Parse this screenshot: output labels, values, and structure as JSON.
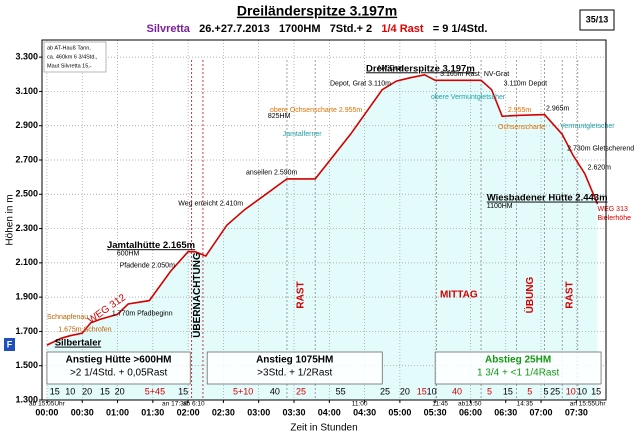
{
  "chart_data": {
    "type": "line",
    "title": "Dreiländerspitze 3.197m",
    "subtitle": [
      {
        "text": "Silvretta",
        "color": "#7a1fa2"
      },
      {
        "text": "26.+27.7.2013",
        "color": "#000000"
      },
      {
        "text": "1700HM",
        "color": "#000000"
      },
      {
        "text": "7Std.+ 2",
        "color": "#000000"
      },
      {
        "text": "1/4 Rast",
        "color": "#e00000"
      },
      {
        "text": "= 9 1/4Std.",
        "color": "#000000"
      }
    ],
    "page_number": "35/13",
    "marker_label": "F",
    "notes": [
      "ab AT-Hauß Tann,",
      "ca. 460km 6 3/4Std.,",
      "Maut Silvretta 15,-"
    ],
    "x_label": "Zeit in Stunden",
    "y_label": "Höhen in m",
    "color": "#d40000",
    "fill": "#e4fbfb",
    "grid": true,
    "xlim": [
      -0.07,
      7.92
    ],
    "ylim": [
      1300,
      3400
    ],
    "xticks": [
      {
        "value": 0,
        "label": "00:00"
      },
      {
        "value": 0.5,
        "label": "00:30"
      },
      {
        "value": 1,
        "label": "01:00"
      },
      {
        "value": 1.5,
        "label": "01:30"
      },
      {
        "value": 2,
        "label": "02:00"
      },
      {
        "value": 2.5,
        "label": "02:30"
      },
      {
        "value": 3,
        "label": "03:00"
      },
      {
        "value": 3.5,
        "label": "03:30"
      },
      {
        "value": 4,
        "label": "04:00"
      },
      {
        "value": 4.5,
        "label": "04:30"
      },
      {
        "value": 5,
        "label": "05:00"
      },
      {
        "value": 5.5,
        "label": "05:30"
      },
      {
        "value": 6,
        "label": "06:00"
      },
      {
        "value": 6.5,
        "label": "06:30"
      },
      {
        "value": 7,
        "label": "07:00"
      },
      {
        "value": 7.5,
        "label": "07:30"
      }
    ],
    "yticks": [
      {
        "value": 1300,
        "label": "1.300"
      },
      {
        "value": 1500,
        "label": "1.500"
      },
      {
        "value": 1700,
        "label": "1.700"
      },
      {
        "value": 1900,
        "label": "1.900"
      },
      {
        "value": 2100,
        "label": "2.100"
      },
      {
        "value": 2300,
        "label": "2.300"
      },
      {
        "value": 2500,
        "label": "2.500"
      },
      {
        "value": 2700,
        "label": "2.700"
      },
      {
        "value": 2900,
        "label": "2.900"
      },
      {
        "value": 3100,
        "label": "3.100"
      },
      {
        "value": 3300,
        "label": "3.300"
      }
    ],
    "x": [
      0,
      0.2,
      0.33,
      0.5,
      0.62,
      0.75,
      1.0,
      1.15,
      1.45,
      1.75,
      2.0,
      2.1,
      2.25,
      2.55,
      2.8,
      3.1,
      3.4,
      3.8,
      4.3,
      4.75,
      4.95,
      5.15,
      5.35,
      5.5,
      6.15,
      6.3,
      6.45,
      6.65,
      7.05,
      7.3,
      7.45,
      7.62,
      7.8
    ],
    "values": [
      1620,
      1660,
      1675,
      1690,
      1750,
      1770,
      1800,
      1860,
      1880,
      2050,
      2165,
      2165,
      2140,
      2320,
      2410,
      2500,
      2590,
      2590,
      2850,
      3110,
      3160,
      3180,
      3197,
      3165,
      3165,
      3110,
      2955,
      2960,
      2965,
      2850,
      2730,
      2620,
      2443
    ],
    "point_labels": [
      {
        "x": 0.11,
        "y": 1597,
        "label": "Silbertaler",
        "color": "#000000",
        "bold": true
      },
      {
        "x": 0.0,
        "y": 1749,
        "label": "Schnapfenau",
        "color": "#c06000",
        "bold": false
      },
      {
        "x": 0.16,
        "y": 1675,
        "label": "1.675m Schrofen",
        "color": "#c06000",
        "bold": false
      },
      {
        "x": 0.92,
        "y": 1770,
        "label": "1.770m Pfadbeginn",
        "color": "#000000",
        "bold": false
      },
      {
        "x": 1.03,
        "y": 2050,
        "label": "Pfadende 2.050m",
        "color": "#000000",
        "bold": false
      },
      {
        "x": 0.85,
        "y": 2165,
        "label": "Jamtalhütte 2.165m",
        "color": "#000000",
        "bold": true
      },
      {
        "x": 0.99,
        "y": 2120,
        "label": "600HM",
        "color": "#000000",
        "bold": false
      },
      {
        "x": 1.86,
        "y": 2410,
        "label": "Weg erreicht 2.410m",
        "color": "#000000",
        "bold": false
      },
      {
        "x": 2.82,
        "y": 2590,
        "label": "anseilen 2.590m",
        "color": "#000000",
        "bold": false
      },
      {
        "x": 3.13,
        "y": 2921,
        "label": "825HM",
        "color": "#000000",
        "bold": false
      },
      {
        "x": 3.34,
        "y": 2816,
        "label": "Jamtalferner",
        "color": "#20a0a8",
        "bold": false
      },
      {
        "x": 3.16,
        "y": 2955,
        "label": "obere Ochsenscharte 2.955m",
        "color": "#e07000",
        "bold": false
      },
      {
        "x": 4.01,
        "y": 3110,
        "label": "Depot, Grat 3.110m",
        "color": "#000000",
        "bold": false
      },
      {
        "x": 4.69,
        "y": 3201,
        "label": "NV-Grat",
        "color": "#000000",
        "bold": false
      },
      {
        "x": 4.52,
        "y": 3197,
        "label": "Dreiländerspitze 3.197m",
        "color": "#000000",
        "bold": true
      },
      {
        "x": 5.57,
        "y": 3165,
        "label": "3.165m Rast",
        "color": "#000000",
        "bold": false
      },
      {
        "x": 6.19,
        "y": 3166,
        "label": "NV-Grat",
        "color": "#000000",
        "bold": false
      },
      {
        "x": 5.44,
        "y": 3032,
        "label": "obere Vermuntgletscher",
        "color": "#20a0a8",
        "bold": false
      },
      {
        "x": 6.47,
        "y": 3110,
        "label": "3.110m Depot",
        "color": "#000000",
        "bold": false
      },
      {
        "x": 6.39,
        "y": 2857,
        "label": "Ochsenscharte",
        "color": "#e07000",
        "bold": false
      },
      {
        "x": 6.53,
        "y": 2955,
        "label": "2.955m",
        "color": "#e07000",
        "bold": false
      },
      {
        "x": 7.07,
        "y": 2965,
        "label": "2.965m",
        "color": "#000000",
        "bold": false
      },
      {
        "x": 7.27,
        "y": 2863,
        "label": "Vermuntgletscher",
        "color": "#20a0a8",
        "bold": false
      },
      {
        "x": 7.37,
        "y": 2730,
        "label": "2.730m Gletscherende",
        "color": "#000000",
        "bold": false
      },
      {
        "x": 7.66,
        "y": 2620,
        "label": "2.620m",
        "color": "#000000",
        "bold": false
      },
      {
        "x": 6.23,
        "y": 2443,
        "label": "Wiesbadener Hütte 2.443m",
        "color": "#000000",
        "bold": true
      },
      {
        "x": 6.23,
        "y": 2396,
        "label": "1100HM",
        "color": "#000000",
        "bold": false
      },
      {
        "x": 7.8,
        "y": 2379,
        "label": "WEG 313",
        "color": "#d40000",
        "bold": false
      },
      {
        "x": 7.8,
        "y": 2327,
        "label": "Bielerhöhe",
        "color": "#d40000",
        "bold": false
      }
    ],
    "path_label": "WEG 312",
    "bands": [
      {
        "label": "ÜBERNACHTUNG",
        "start": 2.05,
        "end": 2.21,
        "color": "#000000",
        "vertical": true
      },
      {
        "label": "RAST",
        "start": 3.4,
        "end": 3.8,
        "color": "#d40000",
        "vertical": true
      },
      {
        "label": "MITTAG",
        "start": 5.52,
        "end": 6.15,
        "color": "#d40000",
        "vertical": false
      },
      {
        "label": "ÜBUNG",
        "start": 6.65,
        "end": 7.05,
        "color": "#d40000",
        "vertical": true
      },
      {
        "label": "RAST",
        "start": 7.3,
        "end": 7.52,
        "color": "#d40000",
        "vertical": true
      }
    ],
    "phases": [
      {
        "label": "Anstieg Hütte >600HM",
        "sublabel": ">2 1/4Std. + 0,05Rast",
        "start": 0,
        "end": 2.03,
        "color": "#000000"
      },
      {
        "label": "Anstieg 1075HM",
        "sublabel": ">3Std. + 1/2Rast",
        "start": 2.27,
        "end": 4.75,
        "color": "#000000"
      },
      {
        "label": "Abstieg 25HM",
        "sublabel": "1 3/4 + <1 1/4Rast",
        "start": 5.5,
        "end": 7.85,
        "color": "#119911"
      }
    ],
    "clock_labels": [
      {
        "x": 0,
        "label": "ab 15:05Uhr"
      },
      {
        "x": 1.81,
        "label": "an 17:30"
      },
      {
        "x": 2.08,
        "label": "ab 6:10"
      },
      {
        "x": 4.43,
        "label": "11:00"
      },
      {
        "x": 5.57,
        "label": "11:45"
      },
      {
        "x": 5.99,
        "label": "ab13:50"
      },
      {
        "x": 6.77,
        "label": "14:35"
      },
      {
        "x": 7.66,
        "label": "an 15:55Uhr"
      }
    ],
    "durations": [
      {
        "x": 0.11,
        "label": "15",
        "rest": false
      },
      {
        "x": 0.33,
        "label": "10",
        "rest": false
      },
      {
        "x": 0.57,
        "label": "20",
        "rest": false
      },
      {
        "x": 0.82,
        "label": "15",
        "rest": false
      },
      {
        "x": 1.03,
        "label": "20",
        "rest": false
      },
      {
        "x": 1.53,
        "label": "5+45",
        "rest": true
      },
      {
        "x": 1.93,
        "label": "15",
        "rest": false
      },
      {
        "x": 2.78,
        "label": "5+10",
        "rest": true
      },
      {
        "x": 3.23,
        "label": "40",
        "rest": false
      },
      {
        "x": 3.6,
        "label": "25",
        "rest": true
      },
      {
        "x": 4.16,
        "label": "55",
        "rest": false
      },
      {
        "x": 4.79,
        "label": "25",
        "rest": false
      },
      {
        "x": 5.07,
        "label": "20",
        "rest": false
      },
      {
        "x": 5.31,
        "label": "15",
        "rest": true
      },
      {
        "x": 5.45,
        "label": "10",
        "rest": false
      },
      {
        "x": 5.81,
        "label": "40",
        "rest": true
      },
      {
        "x": 6.27,
        "label": "5",
        "rest": true
      },
      {
        "x": 6.53,
        "label": "15",
        "rest": false
      },
      {
        "x": 6.84,
        "label": "5",
        "rest": true
      },
      {
        "x": 7.07,
        "label": "5",
        "rest": false
      },
      {
        "x": 7.2,
        "label": "25",
        "rest": false
      },
      {
        "x": 7.42,
        "label": "10",
        "rest": true
      },
      {
        "x": 7.58,
        "label": "10",
        "rest": false
      },
      {
        "x": 7.78,
        "label": "15",
        "rest": false
      }
    ]
  }
}
